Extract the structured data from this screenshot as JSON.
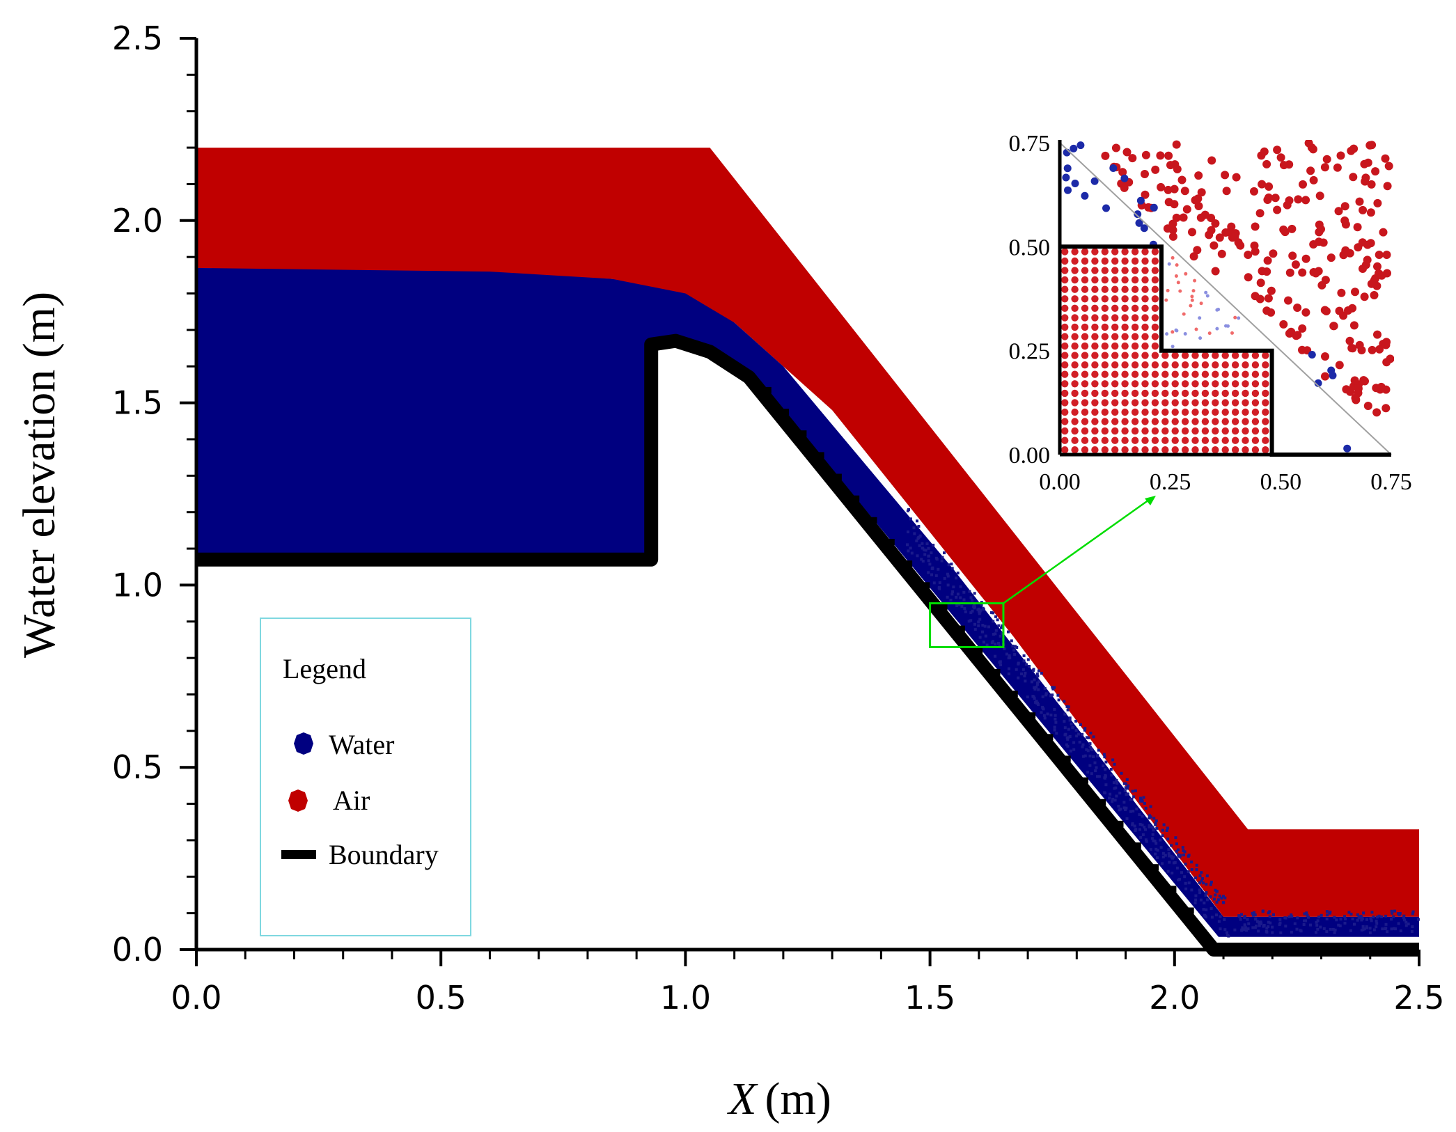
{
  "chart_data": {
    "type": "scatter",
    "title": "",
    "xlabel_italic": "X",
    "xlabel_unit": "(m)",
    "ylabel": "Water elevation (m)",
    "xlim": [
      0.0,
      2.5
    ],
    "ylim": [
      0.0,
      2.5
    ],
    "xticks": [
      0.0,
      0.5,
      1.0,
      1.5,
      2.0,
      2.5
    ],
    "yticks": [
      0.0,
      0.5,
      1.0,
      1.5,
      2.0,
      2.5
    ],
    "xtick_labels": [
      "0.0",
      "0.5",
      "1.0",
      "1.5",
      "2.0",
      "2.5"
    ],
    "ytick_labels": [
      "0.0",
      "0.5",
      "1.0",
      "1.5",
      "2.0",
      "2.5"
    ],
    "minor_step": 0.1,
    "grid": false,
    "series": [
      {
        "name": "Air",
        "color": "#c00000",
        "region": [
          [
            0.0,
            2.2
          ],
          [
            1.05,
            2.2
          ],
          [
            2.15,
            0.33
          ],
          [
            2.5,
            0.33
          ],
          [
            2.5,
            0.09
          ],
          [
            2.1,
            0.09
          ],
          [
            1.67,
            0.86
          ],
          [
            1.3,
            1.48
          ],
          [
            1.1,
            1.72
          ],
          [
            0.85,
            1.84
          ],
          [
            0.0,
            1.87
          ]
        ]
      },
      {
        "name": "Water",
        "color": "#000080",
        "region": [
          [
            0.0,
            1.87
          ],
          [
            0.6,
            1.86
          ],
          [
            0.85,
            1.84
          ],
          [
            1.0,
            1.8
          ],
          [
            1.1,
            1.72
          ],
          [
            1.2,
            1.6
          ],
          [
            1.35,
            1.36
          ],
          [
            1.55,
            1.04
          ],
          [
            1.8,
            0.61
          ],
          [
            2.1,
            0.09
          ],
          [
            2.5,
            0.09
          ],
          [
            2.5,
            0.035
          ],
          [
            2.09,
            0.035
          ],
          [
            1.15,
            1.56
          ],
          [
            1.05,
            1.64
          ],
          [
            0.98,
            1.67
          ],
          [
            0.92,
            1.67
          ],
          [
            0.92,
            1.08
          ],
          [
            0.0,
            1.08
          ]
        ]
      },
      {
        "name": "Boundary",
        "color": "#000000",
        "path": [
          [
            0.0,
            1.07
          ],
          [
            0.93,
            1.07
          ],
          [
            0.93,
            1.66
          ],
          [
            0.98,
            1.67
          ],
          [
            1.05,
            1.64
          ],
          [
            1.13,
            1.57
          ],
          [
            2.08,
            0.0
          ],
          [
            2.5,
            0.0
          ]
        ]
      }
    ],
    "legend": {
      "title": "Legend",
      "position": "lower-left",
      "entries": [
        "Water",
        "Air",
        "Boundary"
      ]
    },
    "zoom_box": {
      "x": [
        1.5,
        1.65
      ],
      "y": [
        0.83,
        0.95
      ],
      "color": "#00dd00"
    },
    "inset": {
      "xlim": [
        0.0,
        0.75
      ],
      "ylim": [
        0.0,
        0.75
      ],
      "xticks": [
        0.0,
        0.25,
        0.5,
        0.75
      ],
      "yticks": [
        0.0,
        0.25,
        0.5,
        0.75
      ],
      "xtick_labels": [
        "0.00",
        "0.25",
        "0.50",
        "0.75"
      ],
      "ytick_labels": [
        "0.00",
        "0.25",
        "0.50",
        "0.75"
      ],
      "boundary": [
        [
          0.0,
          0.5
        ],
        [
          0.23,
          0.5
        ],
        [
          0.23,
          0.25
        ],
        [
          0.48,
          0.25
        ],
        [
          0.48,
          0.0
        ],
        [
          0.75,
          0.0
        ]
      ],
      "diagonal": [
        [
          0.0,
          0.75
        ],
        [
          0.75,
          0.0
        ]
      ],
      "lattice_step": 0.0227,
      "lattice_extent": [
        0.23,
        0.48
      ]
    }
  }
}
